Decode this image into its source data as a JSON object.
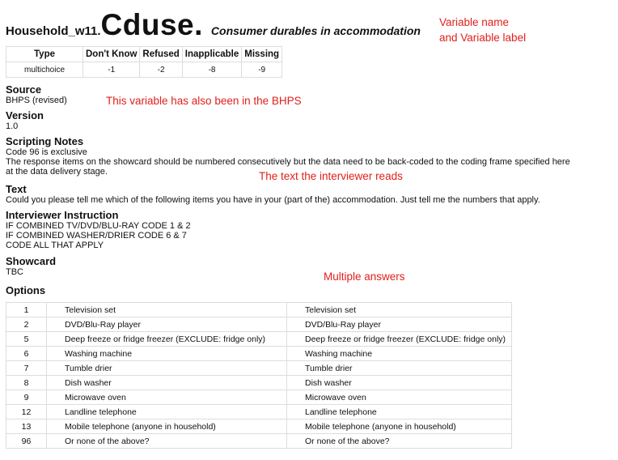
{
  "variable": {
    "prefix": "Household_w11.",
    "name": "Cduse.",
    "label": "Consumer durables in accommodation"
  },
  "meta_table": {
    "headers": [
      "Type",
      "Don't Know",
      "Refused",
      "Inapplicable",
      "Missing"
    ],
    "values": [
      "multichoice",
      "-1",
      "-2",
      "-8",
      "-9"
    ]
  },
  "sections": {
    "source": {
      "heading": "Source",
      "text": "BHPS (revised)"
    },
    "version": {
      "heading": "Version",
      "text": "1.0"
    },
    "scripting": {
      "heading": "Scripting Notes",
      "lines": [
        "Code 96 is exclusive",
        "The response items on the showcard should be numbered consecutively but the data need to be back-coded to the coding frame specified here",
        "at the data delivery stage."
      ]
    },
    "text": {
      "heading": "Text",
      "text": "Could you please tell me which of the following items you have in your (part of the) accommodation. Just tell me the numbers that apply."
    },
    "instruction": {
      "heading": "Interviewer Instruction",
      "lines": [
        "IF COMBINED TV/DVD/BLU-RAY CODE 1 & 2",
        "IF COMBINED WASHER/DRIER CODE 6 & 7",
        "CODE ALL THAT APPLY"
      ]
    },
    "showcard": {
      "heading": "Showcard",
      "text": "TBC"
    },
    "options": {
      "heading": "Options"
    }
  },
  "options": [
    {
      "code": "1",
      "label": "Television set",
      "label2": "Television set"
    },
    {
      "code": "2",
      "label": "DVD/Blu-Ray player",
      "label2": "DVD/Blu-Ray player"
    },
    {
      "code": "5",
      "label": "Deep freeze or fridge freezer (EXCLUDE: fridge only)",
      "label2": "Deep freeze or fridge freezer (EXCLUDE: fridge only)"
    },
    {
      "code": "6",
      "label": "Washing machine",
      "label2": "Washing machine"
    },
    {
      "code": "7",
      "label": "Tumble drier",
      "label2": "Tumble drier"
    },
    {
      "code": "8",
      "label": "Dish washer",
      "label2": "Dish washer"
    },
    {
      "code": "9",
      "label": "Microwave oven",
      "label2": "Microwave oven"
    },
    {
      "code": "12",
      "label": "Landline telephone",
      "label2": "Landline telephone"
    },
    {
      "code": "13",
      "label": "Mobile telephone (anyone in household)",
      "label2": "Mobile telephone (anyone in household)"
    },
    {
      "code": "96",
      "label": "Or none of the above?",
      "label2": "Or none of the above?"
    }
  ],
  "annotations": {
    "name_label_1": "Variable name",
    "name_label_2": "and Variable label",
    "bhps": "This variable has also been in the BHPS",
    "text_reads": "The text the interviewer reads",
    "multiple": "Multiple answers",
    "color": "#e0201c"
  }
}
